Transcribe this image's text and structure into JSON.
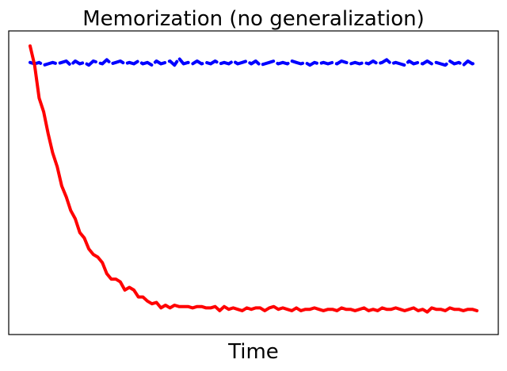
{
  "chart_data": {
    "type": "line",
    "title": "Memorization (no generalization)",
    "xlabel": "Time",
    "ylabel": "",
    "x_ticks_visible": false,
    "y_ticks_visible": false,
    "grid": false,
    "xlim": [
      0,
      99
    ],
    "ylim": [
      -0.04,
      1.04
    ],
    "x": [
      0,
      1,
      2,
      3,
      4,
      5,
      6,
      7,
      8,
      9,
      10,
      11,
      12,
      13,
      14,
      15,
      16,
      17,
      18,
      19,
      20,
      21,
      22,
      23,
      24,
      25,
      26,
      27,
      28,
      29,
      30,
      31,
      32,
      33,
      34,
      35,
      36,
      37,
      38,
      39,
      40,
      41,
      42,
      43,
      44,
      45,
      46,
      47,
      48,
      49,
      50,
      51,
      52,
      53,
      54,
      55,
      56,
      57,
      58,
      59,
      60,
      61,
      62,
      63,
      64,
      65,
      66,
      67,
      68,
      69,
      70,
      71,
      72,
      73,
      74,
      75,
      76,
      77,
      78,
      79,
      80,
      81,
      82,
      83,
      84,
      85,
      86,
      87,
      88,
      89,
      90,
      91,
      92,
      93,
      94,
      95,
      96,
      97,
      98,
      99
    ],
    "series": [
      {
        "color": "#0000ff",
        "style": "dashed",
        "values": [
          0.94,
          0.935,
          0.94,
          0.93,
          0.935,
          0.94,
          0.935,
          0.94,
          0.945,
          0.93,
          0.945,
          0.935,
          0.94,
          0.93,
          0.945,
          0.94,
          0.935,
          0.95,
          0.935,
          0.94,
          0.945,
          0.935,
          0.94,
          0.935,
          0.945,
          0.935,
          0.94,
          0.93,
          0.945,
          0.935,
          0.94,
          0.945,
          0.93,
          0.955,
          0.935,
          0.94,
          0.935,
          0.945,
          0.935,
          0.94,
          0.935,
          0.945,
          0.935,
          0.94,
          0.935,
          0.945,
          0.935,
          0.94,
          0.945,
          0.935,
          0.945,
          0.93,
          0.935,
          0.94,
          0.945,
          0.935,
          0.94,
          0.935,
          0.945,
          0.94,
          0.935,
          0.94,
          0.93,
          0.94,
          0.935,
          0.94,
          0.935,
          0.94,
          0.935,
          0.945,
          0.94,
          0.935,
          0.94,
          0.935,
          0.94,
          0.935,
          0.945,
          0.935,
          0.94,
          0.95,
          0.935,
          0.94,
          0.935,
          0.93,
          0.945,
          0.935,
          0.94,
          0.935,
          0.945,
          0.935,
          0.94,
          0.935,
          0.93,
          0.945,
          0.935,
          0.94,
          0.93,
          0.945,
          0.935,
          0.94
        ]
      },
      {
        "color": "#ff0000",
        "style": "solid",
        "values": [
          1.0,
          0.93,
          0.81,
          0.76,
          0.68,
          0.61,
          0.56,
          0.49,
          0.45,
          0.4,
          0.37,
          0.32,
          0.3,
          0.26,
          0.24,
          0.23,
          0.21,
          0.17,
          0.15,
          0.15,
          0.14,
          0.11,
          0.12,
          0.11,
          0.085,
          0.085,
          0.07,
          0.06,
          0.065,
          0.045,
          0.055,
          0.045,
          0.055,
          0.05,
          0.05,
          0.05,
          0.045,
          0.05,
          0.05,
          0.045,
          0.045,
          0.05,
          0.035,
          0.05,
          0.04,
          0.045,
          0.04,
          0.035,
          0.045,
          0.04,
          0.045,
          0.045,
          0.035,
          0.045,
          0.05,
          0.04,
          0.045,
          0.04,
          0.035,
          0.045,
          0.035,
          0.04,
          0.04,
          0.045,
          0.04,
          0.035,
          0.04,
          0.04,
          0.035,
          0.045,
          0.04,
          0.04,
          0.035,
          0.04,
          0.045,
          0.035,
          0.04,
          0.035,
          0.045,
          0.04,
          0.04,
          0.045,
          0.04,
          0.035,
          0.04,
          0.045,
          0.035,
          0.04,
          0.03,
          0.045,
          0.04,
          0.04,
          0.035,
          0.045,
          0.04,
          0.04,
          0.035,
          0.04,
          0.04,
          0.035
        ]
      }
    ]
  }
}
